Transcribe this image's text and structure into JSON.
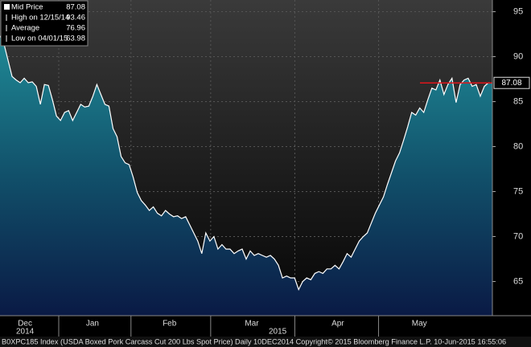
{
  "chart_data": {
    "type": "area",
    "values": [
      92.3,
      91.4,
      89.6,
      87.8,
      87.4,
      87.1,
      87.6,
      87.1,
      87.2,
      86.7,
      84.7,
      86.9,
      86.8,
      85.2,
      83.4,
      82.9,
      83.8,
      84.0,
      82.9,
      83.8,
      84.7,
      84.4,
      84.5,
      85.6,
      86.9,
      85.8,
      84.7,
      84.5,
      82.0,
      81.1,
      78.9,
      78.2,
      78.0,
      76.6,
      74.9,
      74.0,
      73.5,
      72.9,
      73.3,
      72.6,
      72.3,
      72.9,
      72.5,
      72.2,
      72.3,
      72.0,
      72.2,
      71.3,
      70.4,
      69.5,
      68.1,
      70.4,
      69.5,
      70.0,
      68.6,
      69.1,
      68.6,
      68.6,
      68.1,
      68.4,
      68.6,
      67.5,
      68.4,
      67.9,
      68.1,
      67.9,
      67.7,
      67.9,
      67.5,
      66.8,
      65.4,
      65.6,
      65.4,
      65.4,
      64.1,
      65.0,
      65.4,
      65.2,
      65.9,
      66.1,
      65.9,
      66.4,
      66.4,
      66.8,
      66.4,
      67.2,
      68.1,
      67.7,
      68.6,
      69.5,
      70.0,
      70.4,
      71.5,
      72.6,
      73.5,
      74.4,
      75.8,
      77.1,
      78.4,
      79.3,
      80.7,
      82.2,
      83.8,
      83.5,
      84.3,
      83.8,
      85.2,
      86.5,
      86.3,
      87.4,
      85.8,
      86.9,
      87.6,
      84.9,
      86.9,
      87.4,
      87.6,
      86.7,
      86.9,
      85.6,
      86.7,
      87.1,
      87.08
    ],
    "color": "#ffffff",
    "xlim": [
      0,
      122
    ],
    "ylim": [
      61.2,
      96.3
    ],
    "yticks": [
      65,
      70,
      75,
      80,
      85,
      90,
      95
    ],
    "xticks": [
      {
        "value": 6.2,
        "label": "Dec"
      },
      {
        "value": 22.9,
        "label": "Jan"
      },
      {
        "value": 42,
        "label": "Feb"
      },
      {
        "value": 62.4,
        "label": "Mar"
      },
      {
        "value": 83.7,
        "label": "Apr"
      },
      {
        "value": 103.9,
        "label": "May"
      }
    ],
    "year_ticks": [
      {
        "value": 6.2,
        "label": "2014"
      },
      {
        "value": 68.8,
        "label": "2015"
      }
    ],
    "grid": true,
    "legend": [
      {
        "name": "Mid Price",
        "value": 87.08
      },
      {
        "name": "High on 12/15/14",
        "value": 93.46
      },
      {
        "name": "Average",
        "value": 76.96
      },
      {
        "name": "Low on 04/01/15",
        "value": 63.98
      }
    ],
    "reference_color": "#e0161b",
    "footer": "B0XPC185 Index (USDA Boxed Pork Carcass Cut 200 Lbs Spot Price)  Daily 10DEC2014 Copyright© 2015 Bloomberg Finance L.P. 10-Jun-2015 16:55:06"
  }
}
